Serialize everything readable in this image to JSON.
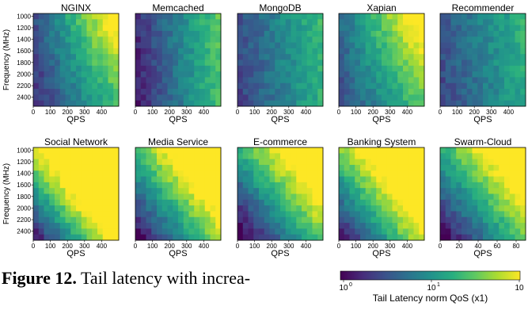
{
  "caption": {
    "label": "Figure 12.",
    "text": "Tail latency with increa-"
  },
  "chart_data": {
    "type": "heatmap",
    "ylabel": "Frequency (MHz)",
    "xlabel": "QPS",
    "yticks": [
      "1000",
      "1200",
      "1400",
      "1600",
      "1800",
      "2000",
      "2200",
      "2400"
    ],
    "colorbar": {
      "label": "Tail Latency norm QoS (x1)",
      "scale": "log",
      "ticks": [
        "10",
        "10",
        "10"
      ],
      "tick_exponents": [
        "0",
        "1",
        ""
      ]
    },
    "panels": [
      {
        "title": "NGINX",
        "xticks": [
          "0",
          "100",
          "200",
          "300",
          "400"
        ],
        "xmax": 500,
        "pattern": "diag",
        "k": 0.55,
        "base": 0.12
      },
      {
        "title": "Memcached",
        "xticks": [
          "0",
          "100",
          "200",
          "300",
          "400"
        ],
        "xmax": 500,
        "pattern": "vertical",
        "k": 0.65,
        "base": 0.06
      },
      {
        "title": "MongoDB",
        "xticks": [
          "0",
          "100",
          "200",
          "300",
          "400"
        ],
        "xmax": 500,
        "pattern": "vertical",
        "k": 0.45,
        "base": 0.18
      },
      {
        "title": "Xapian",
        "xticks": [
          "0",
          "100",
          "200",
          "300",
          "400"
        ],
        "xmax": 500,
        "pattern": "diag",
        "k": 0.5,
        "base": 0.22
      },
      {
        "title": "Recommender",
        "xticks": [
          "0",
          "100",
          "200",
          "300",
          "400"
        ],
        "xmax": 500,
        "pattern": "vertical",
        "k": 0.4,
        "base": 0.2
      },
      {
        "title": "Social Network",
        "xticks": [
          "0",
          "100",
          "200",
          "300",
          "400"
        ],
        "xmax": 500,
        "pattern": "strong",
        "k": 1.15,
        "base": 0.0
      },
      {
        "title": "Media Service",
        "xticks": [
          "0",
          "100",
          "200",
          "300",
          "400"
        ],
        "xmax": 500,
        "pattern": "strong",
        "k": 0.9,
        "base": -0.05
      },
      {
        "title": "E-commerce",
        "xticks": [
          "0",
          "100",
          "200",
          "300",
          "400"
        ],
        "xmax": 500,
        "pattern": "strong",
        "k": 0.85,
        "base": -0.1
      },
      {
        "title": "Banking System",
        "xticks": [
          "0",
          "100",
          "200",
          "300",
          "400"
        ],
        "xmax": 500,
        "pattern": "strong",
        "k": 0.95,
        "base": 0.0
      },
      {
        "title": "Swarm-Cloud",
        "xticks": [
          "0",
          "20",
          "40",
          "60",
          "80"
        ],
        "xmax": 90,
        "pattern": "strong",
        "k": 0.8,
        "base": -0.05
      }
    ]
  }
}
